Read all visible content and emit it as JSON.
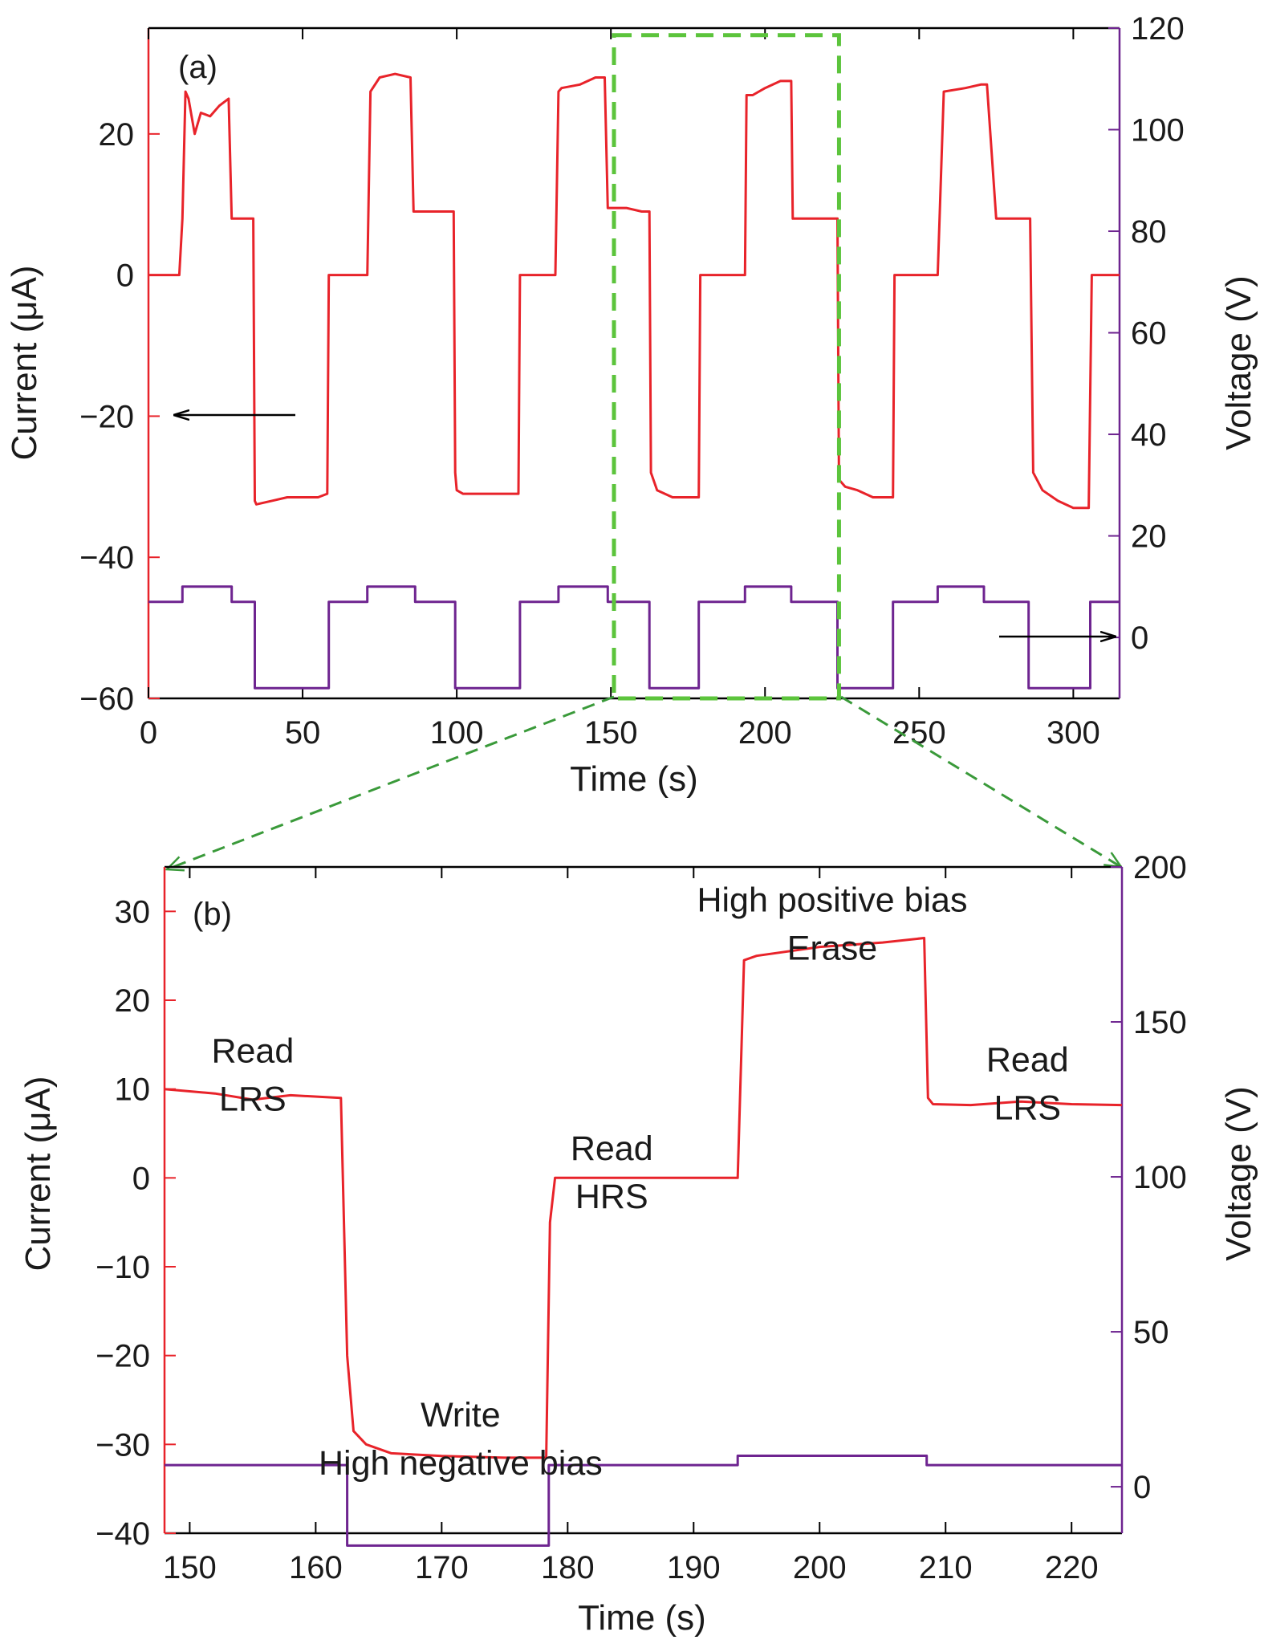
{
  "colors": {
    "current": "#e8232a",
    "voltage": "#6e2490",
    "zoom_box": "#5cc43c",
    "zoom_guide": "#3a9a3a",
    "arrow": "#000000",
    "frame": "#000000"
  },
  "chart_data": [
    {
      "id": "panel-a",
      "type": "line",
      "panel_label": "(a)",
      "xlabel": "Time (s)",
      "ylabel": "Current (μA)",
      "y2label": "Voltage (V)",
      "xlim": [
        0,
        315
      ],
      "ylim": [
        -60,
        35
      ],
      "y2lim": [
        -12,
        120
      ],
      "xticks": [
        0,
        50,
        100,
        150,
        200,
        250,
        300
      ],
      "xtick_labels": [
        "0",
        "50",
        "100",
        "150",
        "200",
        "250",
        "300"
      ],
      "yticks": [
        -60,
        -40,
        -20,
        0,
        20
      ],
      "ytick_labels": [
        "−60",
        "−40",
        "−20",
        "0",
        "20"
      ],
      "y2ticks": [
        0,
        20,
        40,
        60,
        80,
        100,
        120
      ],
      "y2tick_labels": [
        "0",
        "20",
        "40",
        "60",
        "80",
        "100",
        "120"
      ],
      "grid": false,
      "series": [
        {
          "axis": "left",
          "role": "current",
          "x": [
            0,
            10,
            11,
            12,
            13,
            15,
            17,
            20,
            23,
            26,
            27,
            28,
            30,
            33,
            34,
            34.5,
            35,
            40,
            45,
            50,
            55,
            58,
            58.5,
            60,
            70,
            71,
            72,
            75,
            80,
            85,
            86,
            87,
            90,
            95,
            99,
            99.5,
            100,
            102,
            105,
            110,
            115,
            120,
            120.5,
            122,
            132,
            133,
            134,
            140,
            145,
            148,
            149,
            150,
            155,
            160,
            162.5,
            163,
            165,
            170,
            178.5,
            179,
            181,
            193.5,
            194,
            196,
            200,
            205,
            208.5,
            209,
            211,
            215,
            220,
            223.5,
            224,
            226,
            230,
            235,
            240,
            241.5,
            242,
            245,
            255,
            256,
            258,
            265,
            270,
            271,
            272,
            275,
            280,
            285,
            286,
            287,
            290,
            295,
            300,
            305,
            306,
            308,
            315
          ],
          "y": [
            0,
            0,
            8,
            26,
            25,
            20,
            23,
            22.5,
            24,
            25,
            8,
            8,
            8,
            8,
            8,
            -32,
            -32.5,
            -32,
            -31.5,
            -31.5,
            -31.5,
            -31,
            0,
            0,
            0,
            0,
            26,
            28,
            28.5,
            28,
            9,
            9,
            9,
            9,
            9,
            -28,
            -30.5,
            -31,
            -31,
            -31,
            -31,
            -31,
            0,
            0,
            0,
            26,
            26.5,
            27,
            28,
            28,
            9.5,
            9.5,
            9.5,
            9,
            9,
            -28,
            -30.5,
            -31.5,
            -31.5,
            0,
            0,
            0,
            25.5,
            25.5,
            26.5,
            27.5,
            27.5,
            8,
            8,
            8,
            8,
            8,
            -29,
            -30,
            -30.5,
            -31.5,
            -31.5,
            -31.5,
            0,
            0,
            0,
            0,
            26,
            26.5,
            27,
            27,
            27,
            8,
            8,
            8,
            8,
            -28,
            -30.5,
            -32,
            -33,
            -33,
            0,
            0,
            0
          ]
        },
        {
          "axis": "right",
          "role": "voltage",
          "x": [
            0,
            11,
            11,
            27,
            27,
            34.5,
            34.5,
            58.5,
            58.5,
            71,
            71,
            86.5,
            86.5,
            99.5,
            99.5,
            120.5,
            120.5,
            133,
            133,
            149,
            149,
            162.5,
            162.5,
            178.5,
            178.5,
            193.5,
            193.5,
            208.5,
            208.5,
            223.5,
            223.5,
            241.5,
            241.5,
            256,
            256,
            271,
            271,
            285.5,
            285.5,
            305.5,
            305.5,
            315
          ],
          "y": [
            7,
            7,
            10,
            10,
            7,
            7,
            -10,
            -10,
            7,
            7,
            10,
            10,
            7,
            7,
            -10,
            -10,
            7,
            7,
            10,
            10,
            7,
            7,
            -10,
            -10,
            7,
            7,
            10,
            10,
            7,
            7,
            -10,
            -10,
            7,
            7,
            10,
            10,
            7,
            7,
            -10,
            -10,
            7,
            7
          ]
        }
      ],
      "highlight_region": {
        "x_range": [
          151,
          224
        ],
        "y_range": [
          -60,
          34
        ]
      }
    },
    {
      "id": "panel-b",
      "type": "line",
      "panel_label": "(b)",
      "xlabel": "Time (s)",
      "ylabel": "Current (μA)",
      "y2label": "Voltage (V)",
      "xlim": [
        148,
        224
      ],
      "ylim": [
        -40,
        35
      ],
      "y2lim": [
        -15,
        200
      ],
      "xticks": [
        150,
        160,
        170,
        180,
        190,
        200,
        210,
        220
      ],
      "xtick_labels": [
        "150",
        "160",
        "170",
        "180",
        "190",
        "200",
        "210",
        "220"
      ],
      "yticks": [
        -40,
        -30,
        -20,
        -10,
        0,
        10,
        20,
        30
      ],
      "ytick_labels": [
        "−40",
        "−30",
        "−20",
        "−10",
        "0",
        "10",
        "20",
        "30"
      ],
      "y2ticks": [
        0,
        50,
        100,
        150,
        200
      ],
      "y2tick_labels": [
        "0",
        "50",
        "100",
        "150",
        "200"
      ],
      "grid": false,
      "series": [
        {
          "axis": "left",
          "role": "current",
          "x": [
            148,
            152,
            155,
            158,
            162,
            162.5,
            163,
            164,
            166,
            170,
            175,
            178.3,
            178.6,
            179,
            180,
            185,
            190,
            193.5,
            194,
            195,
            200,
            205,
            208.3,
            208.6,
            209,
            212,
            216,
            220,
            224
          ],
          "y": [
            10,
            9.5,
            8.8,
            9.3,
            9,
            -20,
            -28.5,
            -30,
            -31,
            -31.3,
            -31.5,
            -31.5,
            -5,
            0,
            0,
            0,
            0,
            0,
            24.5,
            25,
            26,
            26.5,
            27,
            9,
            8.3,
            8.2,
            8.6,
            8.3,
            8.2
          ]
        },
        {
          "axis": "right",
          "role": "voltage",
          "x": [
            148,
            162.5,
            162.5,
            178.5,
            178.5,
            193.5,
            193.5,
            208.5,
            208.5,
            224
          ],
          "y": [
            7,
            7,
            -19,
            -19,
            7,
            7,
            10,
            10,
            7,
            7
          ]
        }
      ],
      "annotations": [
        {
          "lines": [
            "Read",
            "LRS"
          ],
          "x": 155,
          "y": 13
        },
        {
          "lines": [
            "Write",
            "High negative bias"
          ],
          "x": 171.5,
          "y": -28
        },
        {
          "lines": [
            "Read",
            "HRS"
          ],
          "x": 183.5,
          "y": 2
        },
        {
          "lines": [
            "High positive bias",
            "Erase"
          ],
          "x": 201,
          "y": 30
        },
        {
          "lines": [
            "Read",
            "LRS"
          ],
          "x": 216.5,
          "y": 12
        }
      ]
    }
  ]
}
